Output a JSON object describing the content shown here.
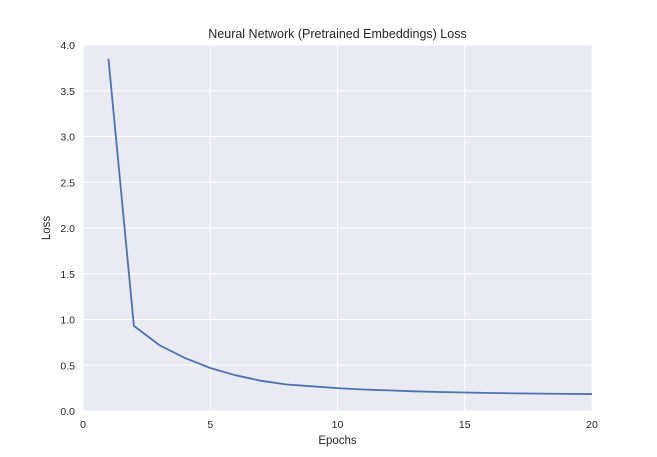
{
  "chart_data": {
    "type": "line",
    "title": "Neural Network (Pretrained Embeddings) Loss",
    "xlabel": "Epochs",
    "ylabel": "Loss",
    "xlim": [
      0,
      20
    ],
    "ylim": [
      0.0,
      4.0
    ],
    "xticks": [
      0,
      5,
      10,
      15,
      20
    ],
    "xtick_labels": [
      "0",
      "5",
      "10",
      "15",
      "20"
    ],
    "yticks": [
      0.0,
      0.5,
      1.0,
      1.5,
      2.0,
      2.5,
      3.0,
      3.5,
      4.0
    ],
    "ytick_labels": [
      "0.0",
      "0.5",
      "1.0",
      "1.5",
      "2.0",
      "2.5",
      "3.0",
      "3.5",
      "4.0"
    ],
    "grid": true,
    "series": [
      {
        "color": "#4c72b0",
        "x": [
          1,
          2,
          3,
          4,
          5,
          6,
          7,
          8,
          9,
          10,
          11,
          12,
          13,
          14,
          15,
          16,
          17,
          18,
          19,
          20
        ],
        "y": [
          3.85,
          0.93,
          0.72,
          0.58,
          0.47,
          0.39,
          0.33,
          0.29,
          0.27,
          0.25,
          0.235,
          0.225,
          0.215,
          0.208,
          0.202,
          0.197,
          0.193,
          0.19,
          0.187,
          0.185
        ]
      }
    ],
    "colors": {
      "plot_background": "#eaeaf2",
      "grid": "#ffffff",
      "text": "#262626"
    }
  }
}
